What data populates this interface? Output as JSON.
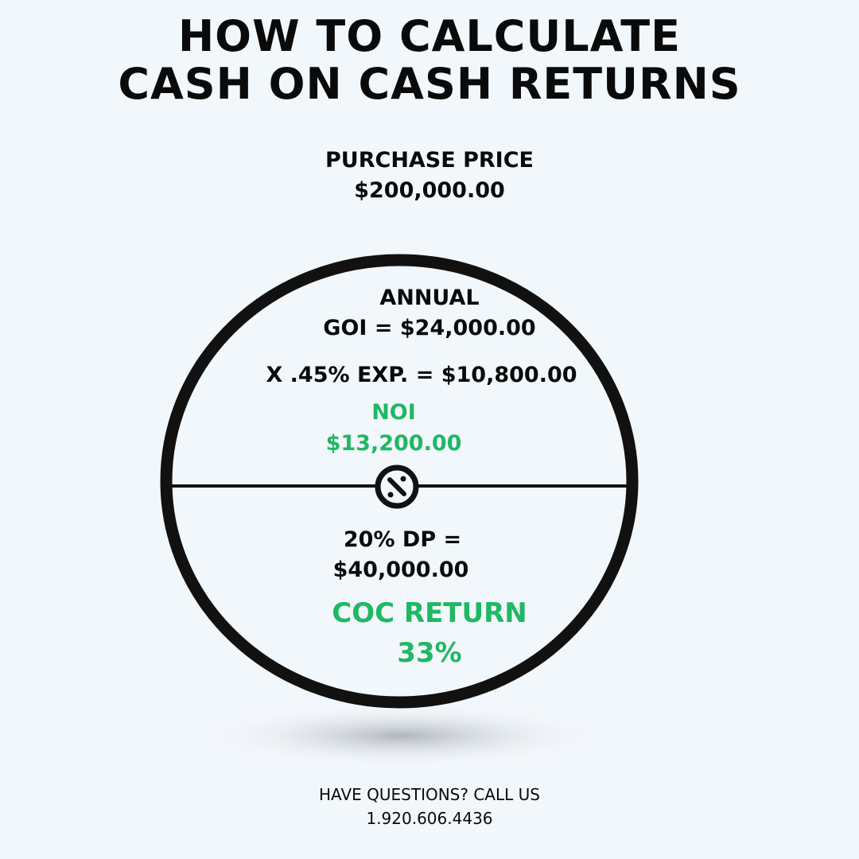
{
  "title": {
    "line1": "HOW TO CALCULATE",
    "line2": "CASH ON CASH RETURNS"
  },
  "purchase": {
    "label": "PURCHASE PRICE",
    "value": "$200,000.00"
  },
  "top_half": {
    "annual": "ANNUAL",
    "goi": "GOI = $24,000.00",
    "expenses": "X .45% EXP. = $10,800.00",
    "noi_label": "NOI",
    "noi_value": "$13,200.00"
  },
  "divide_icon": "division-symbol-icon",
  "bottom_half": {
    "dp_label": "20% DP =",
    "dp_value": "$40,000.00",
    "coc_label": "COC RETURN",
    "coc_value": "33%"
  },
  "footer": {
    "cta": "HAVE QUESTIONS? CALL US",
    "phone": "1.920.606.4436"
  },
  "colors": {
    "background": "#f2f7fb",
    "accent_green": "#1fb864",
    "ink": "#0a0a0a"
  }
}
